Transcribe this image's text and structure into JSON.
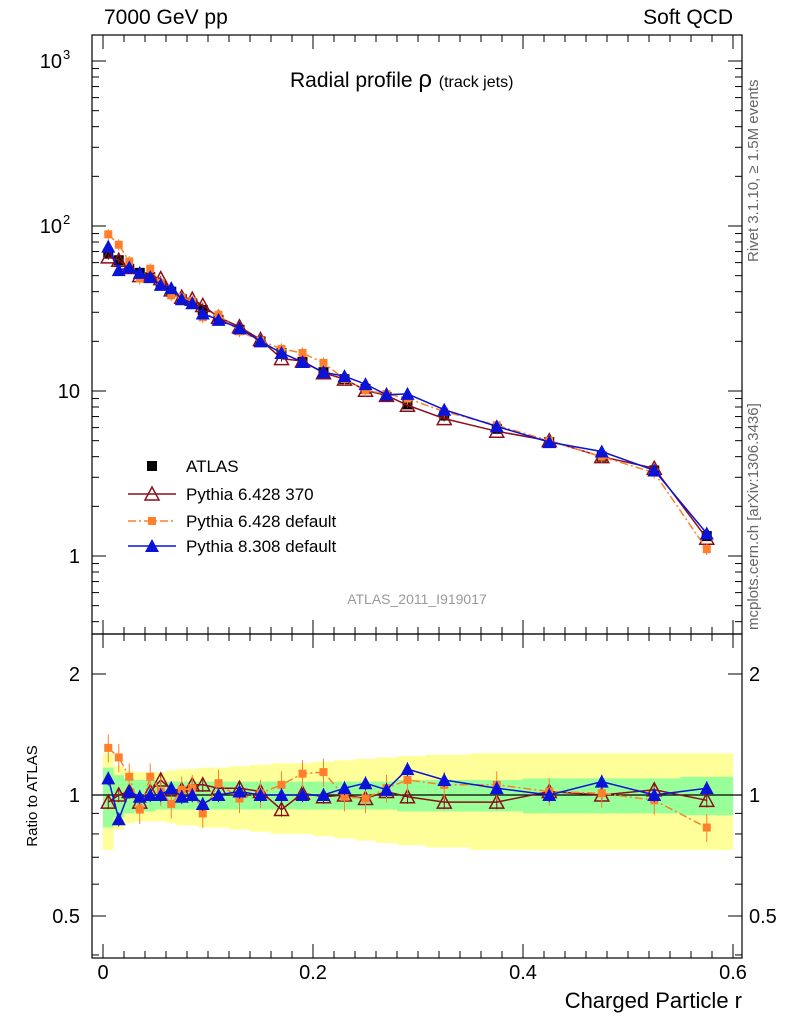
{
  "header": {
    "left": "7000 GeV pp",
    "right": "Soft QCD"
  },
  "side_labels": {
    "rivet": "Rivet 3.1.10, ≥ 1.5M events",
    "mcplots": "mcplots.cern.ch [arXiv:1306.3436]"
  },
  "chart_data": {
    "type": "line",
    "title": "Radial profile",
    "title_symbol": "ρ",
    "title_suffix": "(track jets)",
    "analysis_id": "ATLAS_2011_I919017",
    "xlabel": "Charged Particle r",
    "ylabel_ratio": "Ratio to ATLAS",
    "xlim": [
      -0.01,
      0.6
    ],
    "ylim_main": [
      0.3,
      1500
    ],
    "ylim_ratio": [
      0.4,
      2.4
    ],
    "log_y": true,
    "x_ticks": [
      "0",
      "0.2",
      "0.4",
      "0.6"
    ],
    "y_ticks_main": [
      "1",
      "10",
      "10^2",
      "10^3"
    ],
    "y_ticks_ratio": [
      "0.5",
      "1",
      "2"
    ],
    "legend_position": "lower-left",
    "x": [
      0.005,
      0.015,
      0.025,
      0.035,
      0.045,
      0.055,
      0.065,
      0.075,
      0.085,
      0.095,
      0.11,
      0.13,
      0.15,
      0.17,
      0.19,
      0.21,
      0.23,
      0.25,
      0.27,
      0.29,
      0.325,
      0.375,
      0.425,
      0.475,
      0.525,
      0.575
    ],
    "series": [
      {
        "name": "ATLAS",
        "color": "#000000",
        "values": [
          68,
          62,
          55,
          52,
          49,
          44,
          40,
          36,
          34,
          31,
          27,
          23.5,
          20,
          17,
          15,
          13,
          11.8,
          10.3,
          9.2,
          8.3,
          7.1,
          5.9,
          4.9,
          4.0,
          3.3,
          1.32
        ],
        "ratio": [
          1,
          1,
          1,
          1,
          1,
          1,
          1,
          1,
          1,
          1,
          1,
          1,
          1,
          1,
          1,
          1,
          1,
          1,
          1,
          1,
          1,
          1,
          1,
          1,
          1,
          1
        ],
        "band_inner": [
          0.17,
          0.12,
          0.1,
          0.09,
          0.09,
          0.08,
          0.08,
          0.08,
          0.08,
          0.08,
          0.08,
          0.08,
          0.08,
          0.08,
          0.08,
          0.08,
          0.08,
          0.08,
          0.08,
          0.09,
          0.09,
          0.09,
          0.1,
          0.1,
          0.1,
          0.11
        ],
        "band_outer": [
          0.27,
          0.18,
          0.15,
          0.14,
          0.14,
          0.14,
          0.15,
          0.16,
          0.16,
          0.17,
          0.17,
          0.18,
          0.19,
          0.2,
          0.2,
          0.21,
          0.22,
          0.23,
          0.24,
          0.25,
          0.26,
          0.27,
          0.27,
          0.27,
          0.27,
          0.27
        ]
      },
      {
        "name": "Pythia 6.428 370",
        "color": "#8b0f1b",
        "values": [
          65,
          62,
          56,
          50,
          50,
          48,
          41,
          37,
          36,
          33,
          28,
          24.5,
          20.5,
          15.7,
          15.2,
          12.9,
          11.8,
          10.1,
          9.4,
          8.2,
          6.8,
          5.7,
          5.0,
          4.0,
          3.4,
          1.28
        ],
        "ratio": [
          0.96,
          1.0,
          1.02,
          0.96,
          1.02,
          1.09,
          1.03,
          1.03,
          1.06,
          1.06,
          1.04,
          1.04,
          1.02,
          0.92,
          1.01,
          0.99,
          1.0,
          0.98,
          1.02,
          0.99,
          0.96,
          0.96,
          1.02,
          1.0,
          1.03,
          0.97
        ]
      },
      {
        "name": "Pythia 6.428 default",
        "color": "#ff7f2a",
        "values": [
          89,
          77,
          61,
          48,
          55,
          45,
          38,
          37,
          35,
          28,
          29,
          23,
          20.2,
          18,
          17,
          14.8,
          11.8,
          10.1,
          9.6,
          9.0,
          7.5,
          6.2,
          5.0,
          4.0,
          3.2,
          1.1
        ],
        "ratio": [
          1.31,
          1.24,
          1.11,
          0.92,
          1.11,
          1.02,
          0.95,
          1.03,
          1.04,
          0.9,
          1.07,
          0.98,
          1.01,
          1.06,
          1.13,
          1.14,
          0.99,
          0.98,
          1.04,
          1.09,
          1.06,
          1.06,
          1.02,
          1.01,
          0.97,
          0.83
        ]
      },
      {
        "name": "Pythia 8.308 default",
        "color": "#0a14d8",
        "values": [
          75,
          54,
          56,
          52,
          49,
          44,
          42,
          36,
          34,
          29.5,
          27,
          24,
          20,
          17,
          15,
          13,
          12.3,
          11.0,
          9.5,
          9.6,
          7.7,
          6.1,
          4.9,
          4.3,
          3.3,
          1.37
        ],
        "ratio": [
          1.1,
          0.87,
          1.02,
          0.99,
          1.0,
          1.0,
          1.04,
          0.99,
          1.0,
          0.95,
          1.0,
          1.02,
          1.0,
          1.0,
          1.0,
          1.0,
          1.04,
          1.07,
          1.03,
          1.16,
          1.09,
          1.04,
          1.0,
          1.08,
          1.0,
          1.04
        ]
      }
    ]
  }
}
